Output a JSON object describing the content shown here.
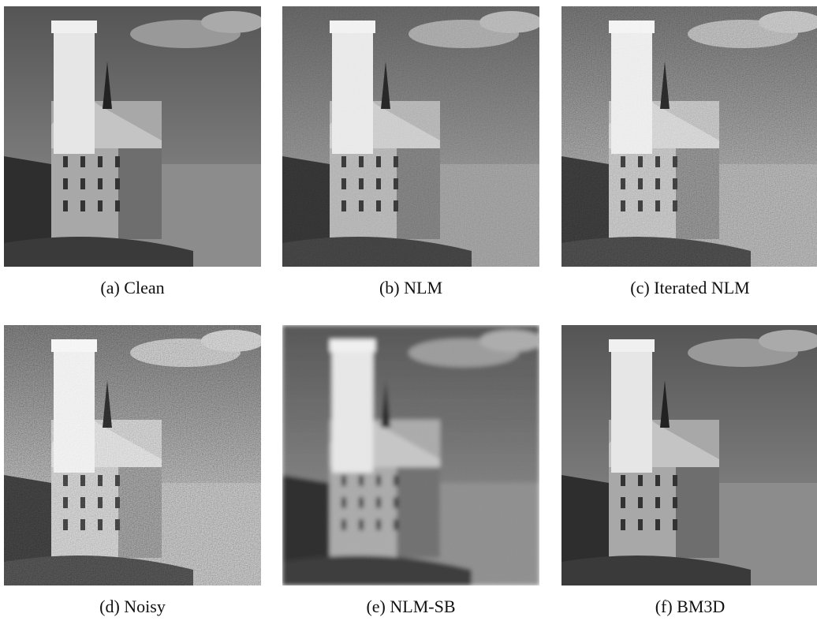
{
  "figure": {
    "panels": [
      {
        "caption": "(a) Clean"
      },
      {
        "caption": "(b) NLM"
      },
      {
        "caption": "(c) Iterated NLM"
      },
      {
        "caption": "(d) Noisy"
      },
      {
        "caption": "(e) NLM-SB"
      },
      {
        "caption": "(f) BM3D"
      }
    ]
  }
}
